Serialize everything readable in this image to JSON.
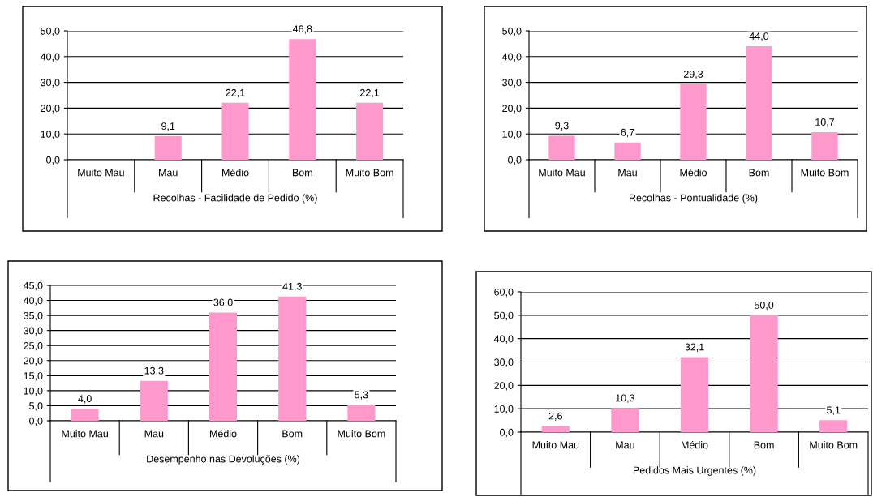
{
  "chart_data": [
    {
      "type": "bar",
      "xlabel": "Recolhas - Facilidade de Pedido (%)",
      "categories": [
        "Muito Mau",
        "Mau",
        "Médio",
        "Bom",
        "Muito Bom"
      ],
      "values": [
        null,
        9.1,
        22.1,
        46.8,
        22.1
      ],
      "value_labels": [
        null,
        "9,1",
        "22,1",
        "46,8",
        "22,1"
      ],
      "color": "#ff99cc",
      "ylim": [
        0,
        50
      ],
      "yticks": [
        {
          "value": 0,
          "label": "0,0"
        },
        {
          "value": 10,
          "label": "10,0"
        },
        {
          "value": 20,
          "label": "20,0"
        },
        {
          "value": 30,
          "label": "30,0"
        },
        {
          "value": 40,
          "label": "40,0"
        },
        {
          "value": 50,
          "label": "50,0"
        }
      ],
      "grid": "y"
    },
    {
      "type": "bar",
      "xlabel": "Recolhas - Pontualidade (%)",
      "categories": [
        "Muito Mau",
        "Mau",
        "Médio",
        "Bom",
        "Muito Bom"
      ],
      "values": [
        9.3,
        6.7,
        29.3,
        44.0,
        10.7
      ],
      "value_labels": [
        "9,3",
        "6,7",
        "29,3",
        "44,0",
        "10,7"
      ],
      "color": "#ff99cc",
      "ylim": [
        0,
        50
      ],
      "yticks": [
        {
          "value": 0,
          "label": "0,0"
        },
        {
          "value": 10,
          "label": "10,0"
        },
        {
          "value": 20,
          "label": "20,0"
        },
        {
          "value": 30,
          "label": "30,0"
        },
        {
          "value": 40,
          "label": "40,0"
        },
        {
          "value": 50,
          "label": "50,0"
        }
      ],
      "grid": "y"
    },
    {
      "type": "bar",
      "xlabel": "Desempenho nas Devoluções (%)",
      "categories": [
        "Muito Mau",
        "Mau",
        "Médio",
        "Bom",
        "Muito Bom"
      ],
      "values": [
        4.0,
        13.3,
        36.0,
        41.3,
        5.3
      ],
      "value_labels": [
        "4,0",
        "13,3",
        "36,0",
        "41,3",
        "5,3"
      ],
      "color": "#ff99cc",
      "ylim": [
        0,
        45
      ],
      "yticks": [
        {
          "value": 0,
          "label": "0,0"
        },
        {
          "value": 5,
          "label": "5,0"
        },
        {
          "value": 10,
          "label": "10,0"
        },
        {
          "value": 15,
          "label": "15,0"
        },
        {
          "value": 20,
          "label": "20,0"
        },
        {
          "value": 25,
          "label": "25,0"
        },
        {
          "value": 30,
          "label": "30,0"
        },
        {
          "value": 35,
          "label": "35,0"
        },
        {
          "value": 40,
          "label": "40,0"
        },
        {
          "value": 45,
          "label": "45,0"
        }
      ],
      "grid": "y"
    },
    {
      "type": "bar",
      "xlabel": "Pedidos Mais Urgentes (%)",
      "categories": [
        "Muito Mau",
        "Mau",
        "Médio",
        "Bom",
        "Muito Bom"
      ],
      "values": [
        2.6,
        10.3,
        32.1,
        50.0,
        5.1
      ],
      "value_labels": [
        "2,6",
        "10,3",
        "32,1",
        "50,0",
        "5,1"
      ],
      "color": "#ff99cc",
      "ylim": [
        0,
        60
      ],
      "yticks": [
        {
          "value": 0,
          "label": "0,0"
        },
        {
          "value": 10,
          "label": "10,0"
        },
        {
          "value": 20,
          "label": "20,0"
        },
        {
          "value": 30,
          "label": "30,0"
        },
        {
          "value": 40,
          "label": "40,0"
        },
        {
          "value": 50,
          "label": "50,0"
        },
        {
          "value": 60,
          "label": "60,0"
        }
      ],
      "grid": "y"
    }
  ]
}
